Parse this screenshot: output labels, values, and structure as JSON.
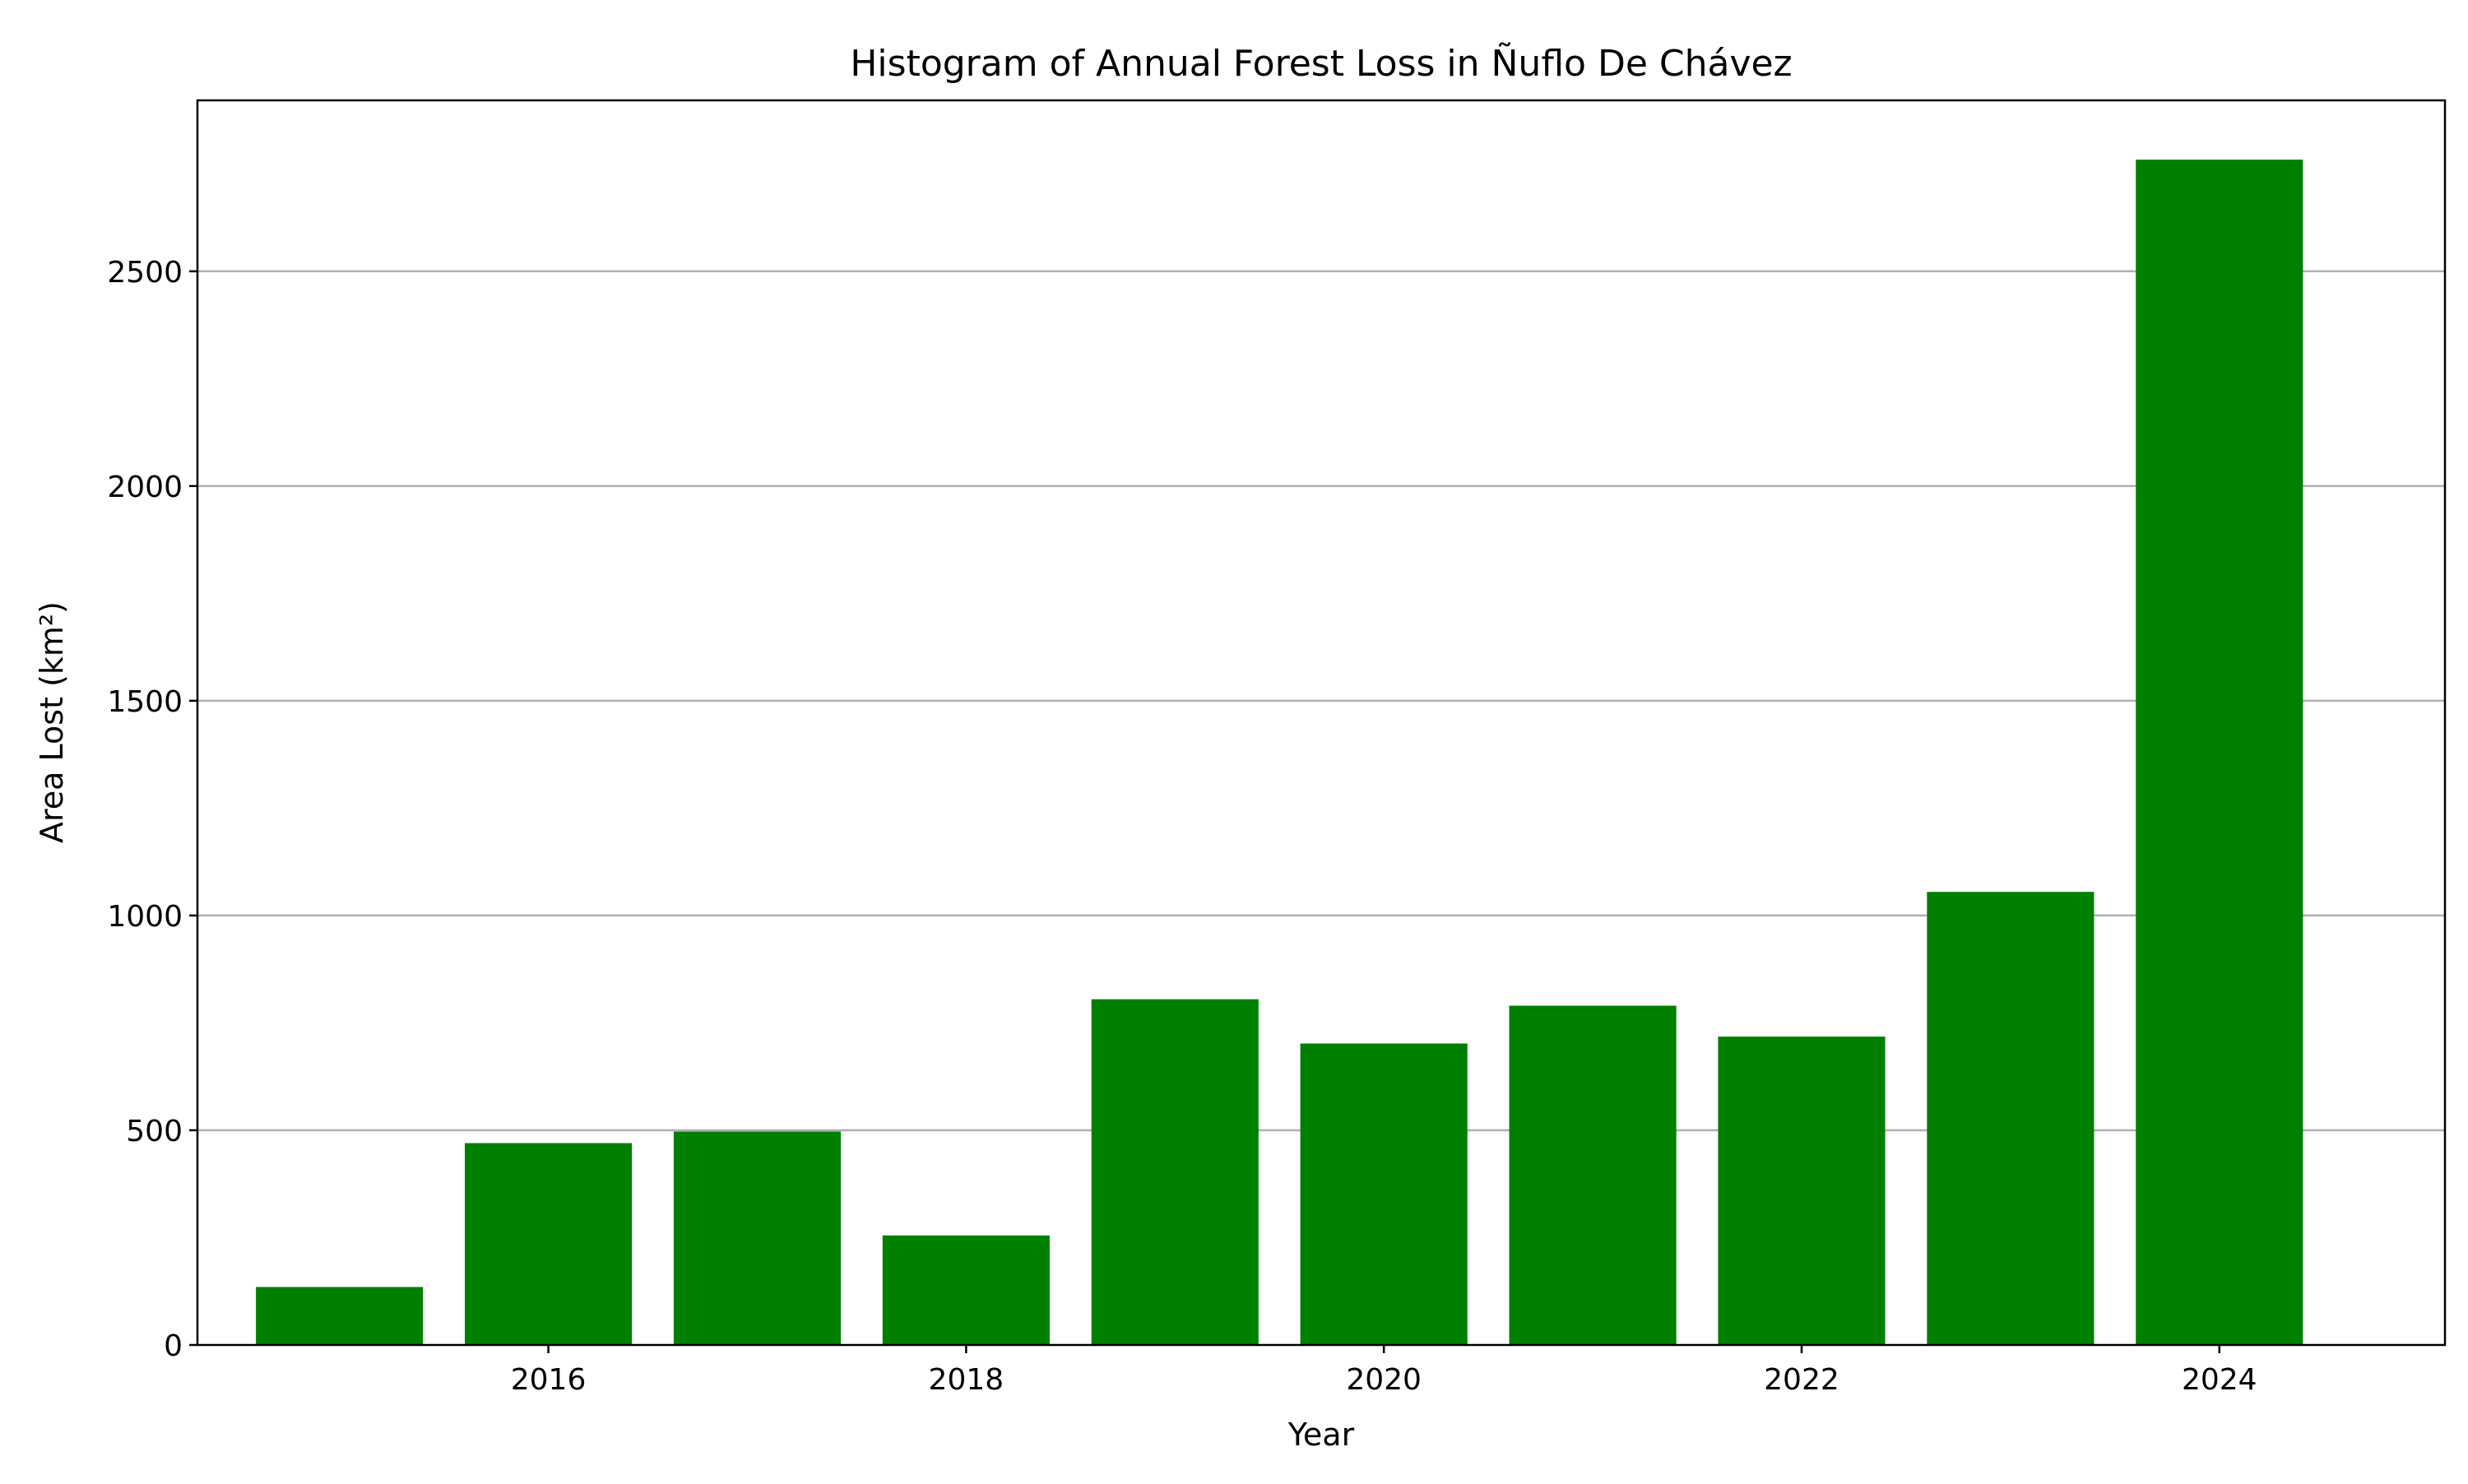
{
  "chart_data": {
    "type": "bar",
    "title": "Histogram of Annual Forest Loss in Ñuflo De Chávez",
    "xlabel": "Year",
    "ylabel": "Area Lost (km²)",
    "categories": [
      2015,
      2016,
      2017,
      2018,
      2019,
      2020,
      2021,
      2022,
      2023,
      2024
    ],
    "values": [
      135,
      470,
      497,
      255,
      805,
      702,
      790,
      718,
      1055,
      2760
    ],
    "xticks": [
      "2016",
      "2018",
      "2020",
      "2022",
      "2024"
    ],
    "yticks": [
      "0",
      "500",
      "1000",
      "1500",
      "2000",
      "2500"
    ],
    "xlim": [
      2014.32,
      2025.08
    ],
    "ylim": [
      0,
      2898
    ],
    "bar_width": 0.8,
    "grid": "y-axis only",
    "bar_color": "#008000",
    "grid_color": "#b0b0b0"
  }
}
